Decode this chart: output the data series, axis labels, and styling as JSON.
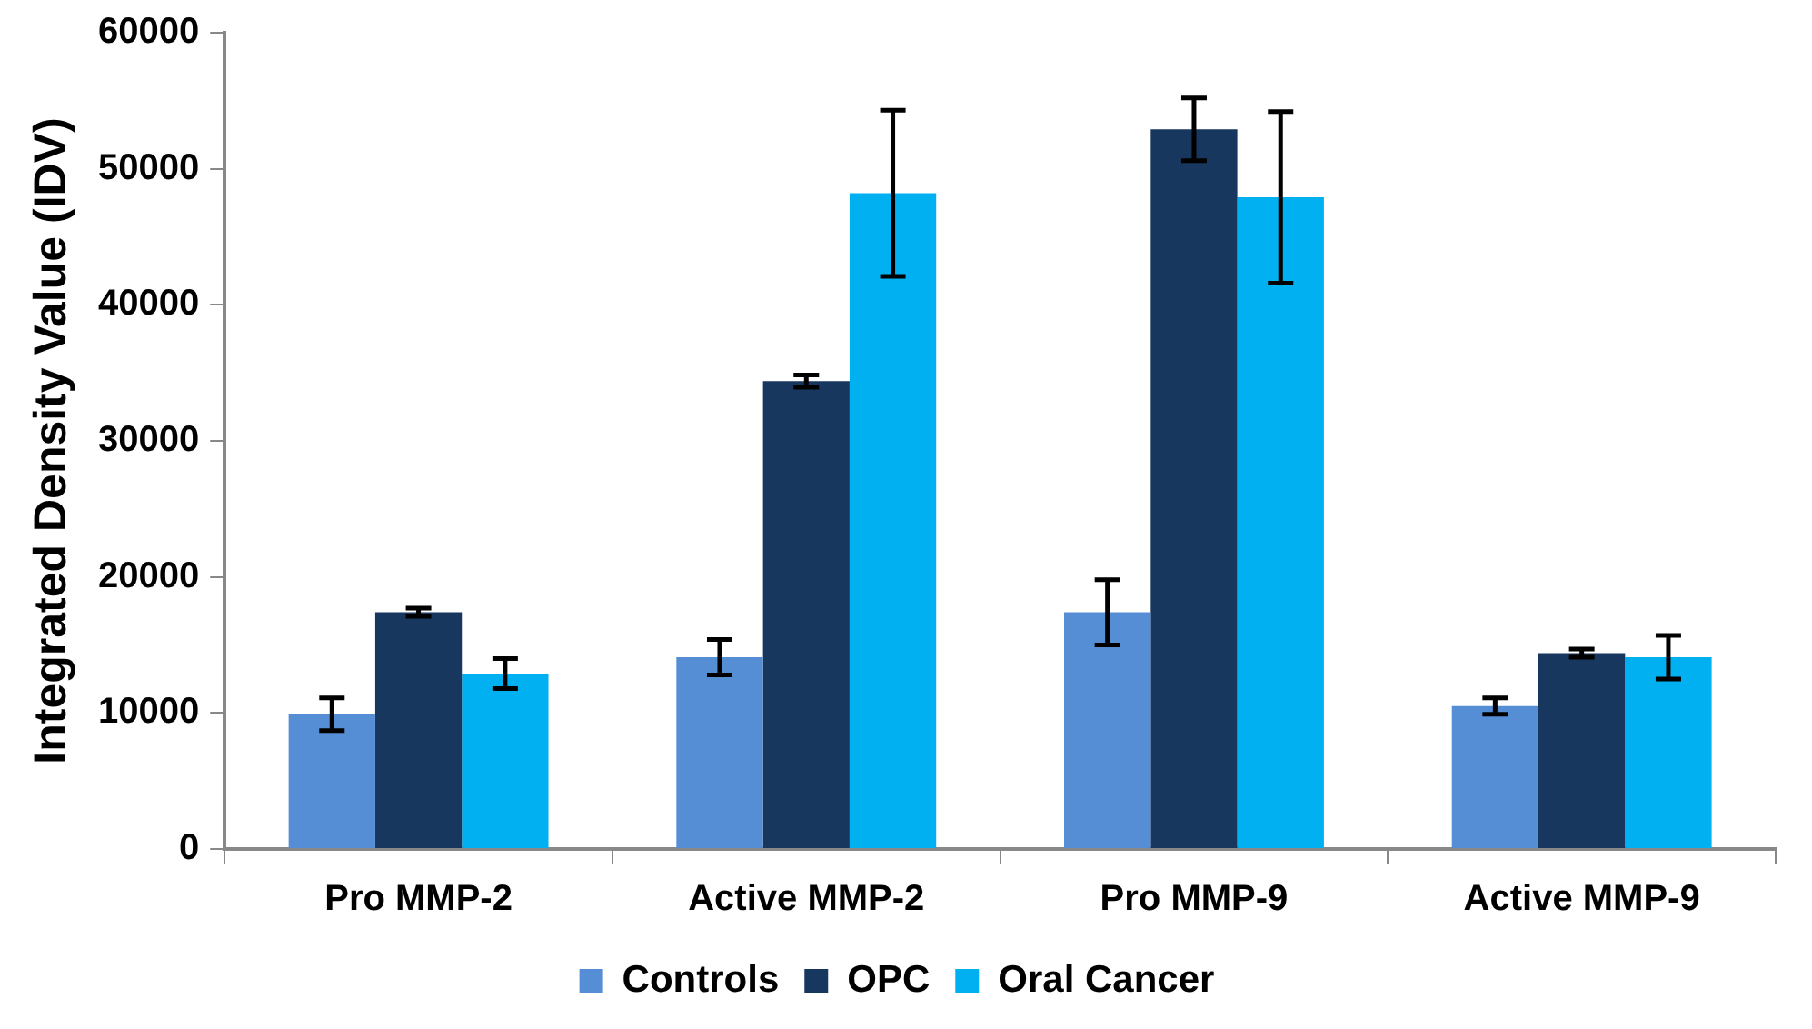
{
  "chart_data": {
    "type": "bar",
    "ylabel": "Integrated Density Value (IDV)",
    "categories": [
      "Pro MMP-2",
      "Active MMP-2",
      "Pro MMP-9",
      "Active MMP-9"
    ],
    "series": [
      {
        "name": "Controls",
        "color": "#558ed5",
        "values": [
          9900,
          14100,
          17400,
          10500
        ],
        "errors": [
          1200,
          1300,
          2400,
          600
        ]
      },
      {
        "name": "OPC",
        "color": "#17375e",
        "values": [
          17400,
          34400,
          52900,
          14400
        ],
        "errors": [
          300,
          450,
          2300,
          300
        ]
      },
      {
        "name": "Oral Cancer",
        "color": "#00b0f0",
        "values": [
          12900,
          48200,
          47900,
          14100
        ],
        "errors": [
          1100,
          6100,
          6300,
          1600
        ]
      }
    ],
    "ylim": [
      0,
      60000
    ],
    "yticks": [
      0,
      10000,
      20000,
      30000,
      40000,
      50000,
      60000
    ],
    "grid": false,
    "legend": "bottom"
  }
}
